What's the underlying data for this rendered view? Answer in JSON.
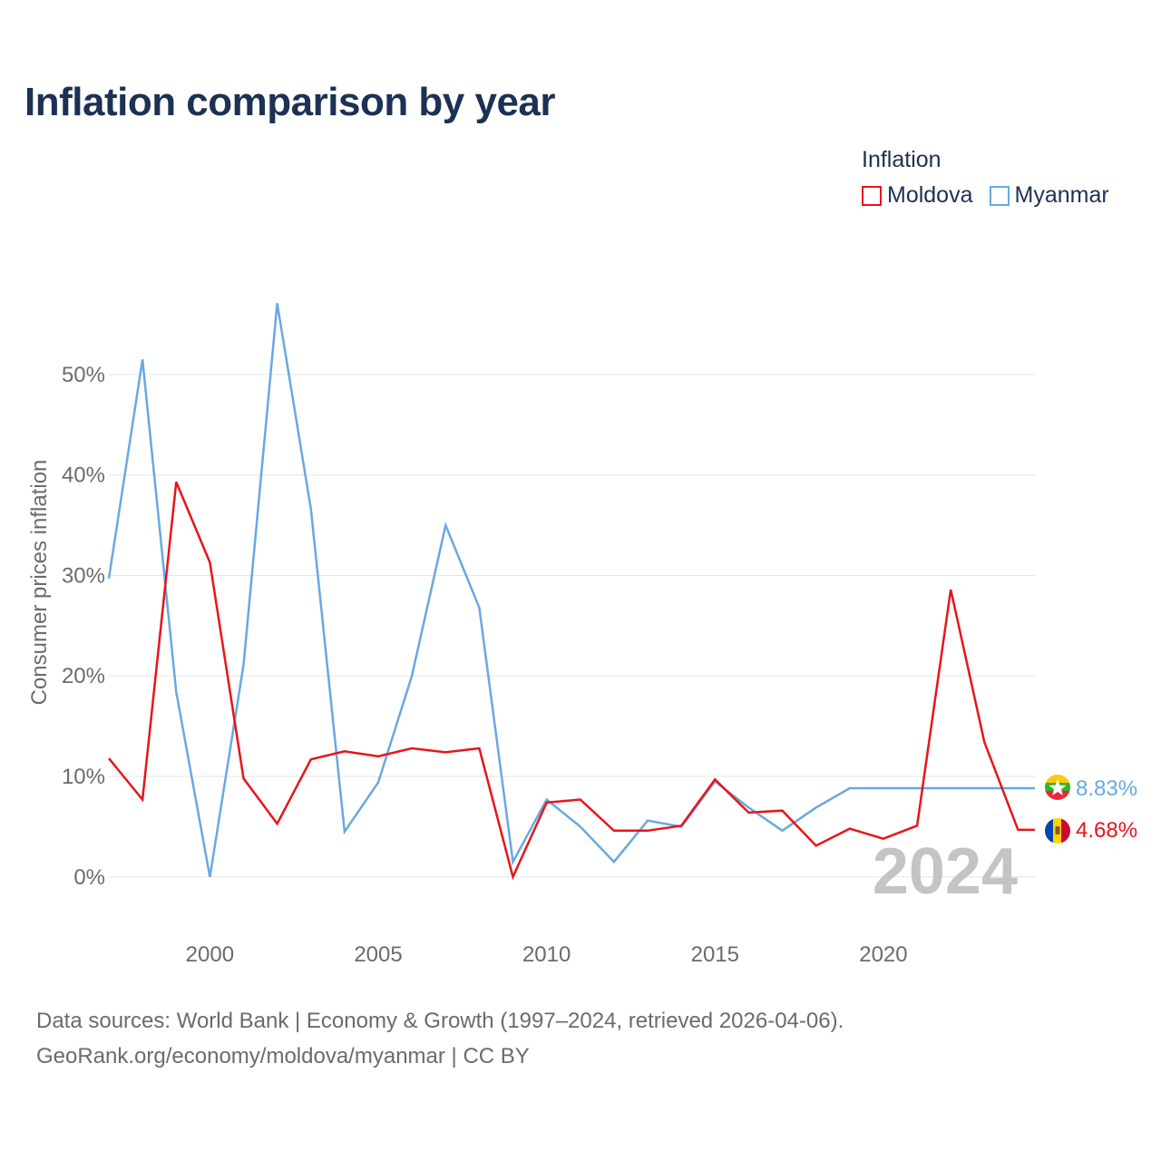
{
  "header": {
    "title": "Inflation comparison by year"
  },
  "legend": {
    "title": "Inflation",
    "items": [
      {
        "label": "Moldova",
        "color": "#e8141b"
      },
      {
        "label": "Myanmar",
        "color": "#68a8e3"
      }
    ]
  },
  "chart_data": {
    "type": "line",
    "title": "Inflation comparison by year",
    "xlabel": "",
    "ylabel": "Consumer prices inflation",
    "x": [
      1997,
      1998,
      1999,
      2000,
      2001,
      2002,
      2003,
      2004,
      2005,
      2006,
      2007,
      2008,
      2009,
      2010,
      2011,
      2012,
      2013,
      2014,
      2015,
      2016,
      2017,
      2018,
      2019,
      2020,
      2021,
      2022,
      2023,
      2024
    ],
    "xlim": [
      1997,
      2024.5
    ],
    "ylim": [
      -3,
      62
    ],
    "yticks": [
      0,
      10,
      20,
      30,
      40,
      50
    ],
    "ytick_labels": [
      "0%",
      "10%",
      "20%",
      "30%",
      "40%",
      "50%"
    ],
    "xticks": [
      2000,
      2005,
      2010,
      2015,
      2020
    ],
    "xtick_labels": [
      "2000",
      "2005",
      "2010",
      "2015",
      "2020"
    ],
    "grid": true,
    "watermark": "2024",
    "series": [
      {
        "name": "Moldova",
        "color": "#e8141b",
        "values": [
          11.8,
          7.7,
          39.3,
          31.3,
          9.8,
          5.3,
          11.7,
          12.5,
          12.0,
          12.8,
          12.4,
          12.8,
          0.0,
          7.4,
          7.7,
          4.6,
          4.6,
          5.1,
          9.7,
          6.4,
          6.6,
          3.1,
          4.8,
          3.8,
          5.1,
          28.6,
          13.4,
          4.68
        ],
        "end_label": "4.68%"
      },
      {
        "name": "Myanmar",
        "color": "#68a8e3",
        "values": [
          29.7,
          51.5,
          18.4,
          0.0,
          21.1,
          57.1,
          36.6,
          4.5,
          9.4,
          20.0,
          35.0,
          26.8,
          1.5,
          7.7,
          5.0,
          1.5,
          5.6,
          5.0,
          9.5,
          6.9,
          4.6,
          6.9,
          8.83,
          8.83,
          8.83,
          8.83,
          8.83,
          8.83
        ],
        "end_label": "8.83%"
      }
    ]
  },
  "footer": {
    "line1": "Data sources: World Bank | Economy & Growth (1997–2024, retrieved 2026-04-06).",
    "line2": "GeoRank.org/economy/moldova/myanmar | CC BY"
  }
}
